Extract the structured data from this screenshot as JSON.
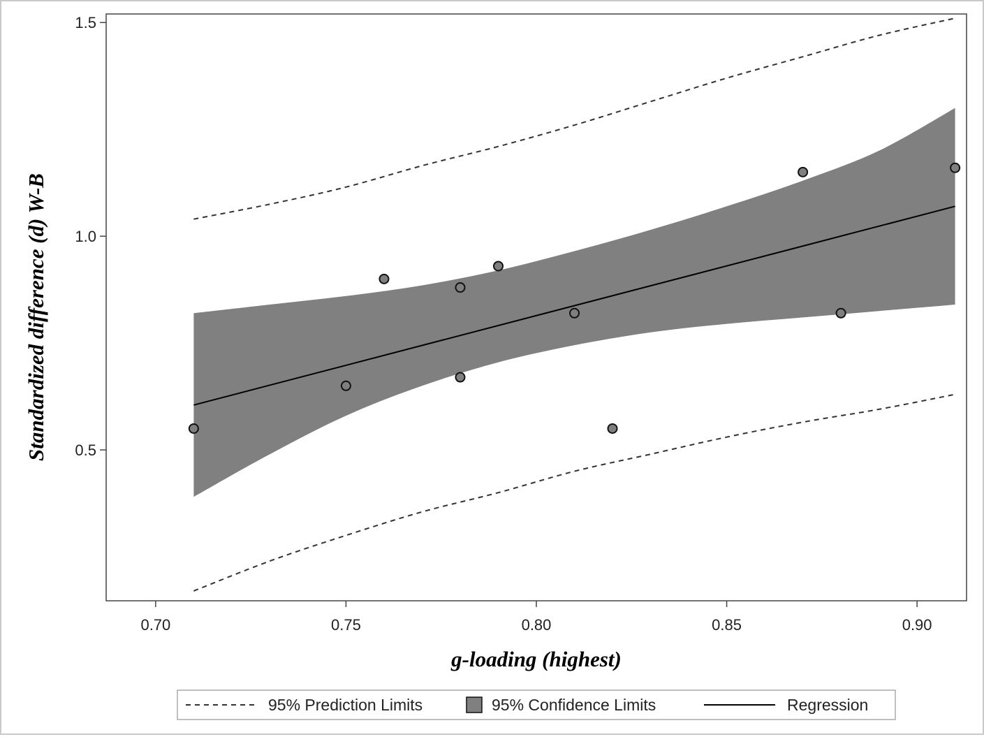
{
  "chart_data": {
    "type": "scatter",
    "title": "",
    "xlabel": "g-loading (highest)",
    "ylabel": "Standardized difference (d) W-B",
    "xlim": [
      0.687,
      0.913
    ],
    "ylim": [
      0.147,
      1.52
    ],
    "x_ticks": [
      "0.70",
      "0.75",
      "0.80",
      "0.85",
      "0.90"
    ],
    "y_ticks": [
      "0.5",
      "1.0",
      "1.5"
    ],
    "points": {
      "name": "Observed",
      "x": [
        0.71,
        0.75,
        0.76,
        0.78,
        0.78,
        0.79,
        0.81,
        0.82,
        0.87,
        0.88,
        0.91
      ],
      "y": [
        0.55,
        0.65,
        0.9,
        0.88,
        0.67,
        0.93,
        0.82,
        0.55,
        1.15,
        0.82,
        1.16
      ]
    },
    "regression": {
      "name": "Regression",
      "x": [
        0.71,
        0.91
      ],
      "y": [
        0.605,
        1.07
      ]
    },
    "confidence_limits": {
      "name": "95% Confidence Limits",
      "x": [
        0.71,
        0.73,
        0.75,
        0.77,
        0.79,
        0.81,
        0.83,
        0.85,
        0.87,
        0.89,
        0.91
      ],
      "lower": [
        0.39,
        0.49,
        0.58,
        0.65,
        0.705,
        0.745,
        0.775,
        0.795,
        0.81,
        0.825,
        0.84
      ],
      "upper": [
        0.82,
        0.84,
        0.86,
        0.885,
        0.92,
        0.965,
        1.015,
        1.07,
        1.13,
        1.2,
        1.3
      ]
    },
    "prediction_limits": {
      "name": "95% Prediction Limits",
      "x": [
        0.71,
        0.73,
        0.75,
        0.77,
        0.79,
        0.81,
        0.83,
        0.85,
        0.87,
        0.89,
        0.91
      ],
      "lower": [
        0.17,
        0.24,
        0.3,
        0.355,
        0.4,
        0.45,
        0.49,
        0.53,
        0.565,
        0.595,
        0.63
      ],
      "upper": [
        1.04,
        1.075,
        1.115,
        1.165,
        1.21,
        1.26,
        1.315,
        1.37,
        1.42,
        1.47,
        1.51
      ]
    },
    "grid": false,
    "legend_position": "bottom",
    "colors": {
      "band": "#808080",
      "line": "#000000",
      "dashed": "#333333",
      "marker_fill": "#7f7f7f",
      "marker_stroke": "#111111",
      "axis": "#444444"
    }
  },
  "legend": {
    "items": [
      {
        "label": "95% Prediction Limits",
        "symbol": "dashed-line"
      },
      {
        "label": "95% Confidence Limits",
        "symbol": "filled-square"
      },
      {
        "label": "Regression",
        "symbol": "solid-line"
      }
    ]
  }
}
